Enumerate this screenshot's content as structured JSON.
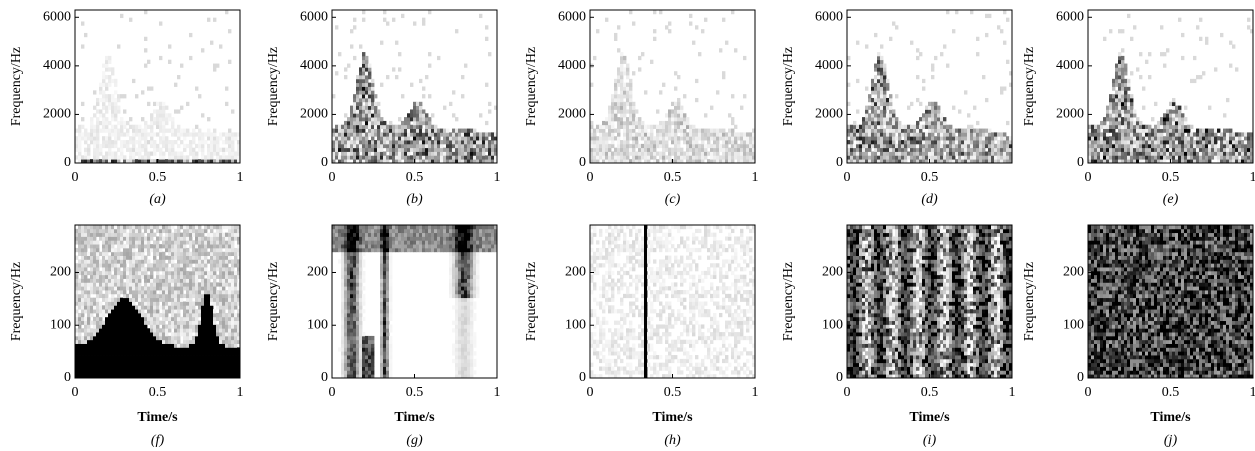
{
  "chart_data": [
    {
      "type": "spectrogram",
      "caption": "(a)",
      "ylabel": "Frequency/Hz",
      "xlim": [
        0,
        1
      ],
      "ylim": [
        0,
        6300
      ],
      "xticks": [
        0,
        0.5,
        1
      ],
      "yticks": [
        0,
        2000,
        4000,
        6000
      ]
    },
    {
      "type": "spectrogram",
      "caption": "(b)",
      "ylabel": "Frequency/Hz",
      "xlim": [
        0,
        1
      ],
      "ylim": [
        0,
        6300
      ],
      "xticks": [
        0,
        0.5,
        1
      ],
      "yticks": [
        0,
        2000,
        4000,
        6000
      ]
    },
    {
      "type": "spectrogram",
      "caption": "(c)",
      "ylabel": "Frequency/Hz",
      "xlim": [
        0,
        1
      ],
      "ylim": [
        0,
        6300
      ],
      "xticks": [
        0,
        0.5,
        1
      ],
      "yticks": [
        0,
        2000,
        4000,
        6000
      ]
    },
    {
      "type": "spectrogram",
      "caption": "(d)",
      "ylabel": "Frequency/Hz",
      "xlim": [
        0,
        1
      ],
      "ylim": [
        0,
        6300
      ],
      "xticks": [
        0,
        0.5
      ],
      "yticks": [
        0,
        2000,
        4000,
        6000
      ]
    },
    {
      "type": "spectrogram",
      "caption": "(e)",
      "ylabel": "Frequency/Hz",
      "xlim": [
        0,
        1
      ],
      "ylim": [
        0,
        6300
      ],
      "xticks": [
        0,
        0.5,
        1
      ],
      "yticks": [
        0,
        2000,
        4000,
        6000
      ]
    },
    {
      "type": "spectrogram",
      "caption": "(f)",
      "xlabel": "Time/s",
      "ylabel": "Frequency/Hz",
      "xlim": [
        0,
        1
      ],
      "ylim": [
        0,
        290
      ],
      "xticks": [
        0,
        0.5,
        1
      ],
      "yticks": [
        0,
        100,
        200
      ]
    },
    {
      "type": "spectrogram",
      "caption": "(g)",
      "xlabel": "Time/s",
      "ylabel": "Frequency/Hz",
      "xlim": [
        0,
        1
      ],
      "ylim": [
        0,
        290
      ],
      "xticks": [
        0,
        0.5,
        1
      ],
      "yticks": [
        0,
        100,
        200
      ]
    },
    {
      "type": "spectrogram",
      "caption": "(h)",
      "xlabel": "Time/s",
      "ylabel": "Frequency/Hz",
      "xlim": [
        0,
        1
      ],
      "ylim": [
        0,
        290
      ],
      "xticks": [
        0,
        0.5,
        1
      ],
      "yticks": [
        0,
        100,
        200
      ]
    },
    {
      "type": "spectrogram",
      "caption": "(i)",
      "xlabel": "Time/s",
      "ylabel": "Frequency/Hz",
      "xlim": [
        0,
        1
      ],
      "ylim": [
        0,
        290
      ],
      "xticks": [
        0,
        0.5,
        1
      ],
      "yticks": [
        0,
        100,
        200
      ]
    },
    {
      "type": "spectrogram",
      "caption": "(j)",
      "xlabel": "Time/s",
      "ylabel": "Frequency/Hz",
      "xlim": [
        0,
        1
      ],
      "ylim": [
        0,
        290
      ],
      "xticks": [
        0,
        0.5,
        1
      ],
      "yticks": [
        0,
        100,
        200
      ]
    }
  ]
}
